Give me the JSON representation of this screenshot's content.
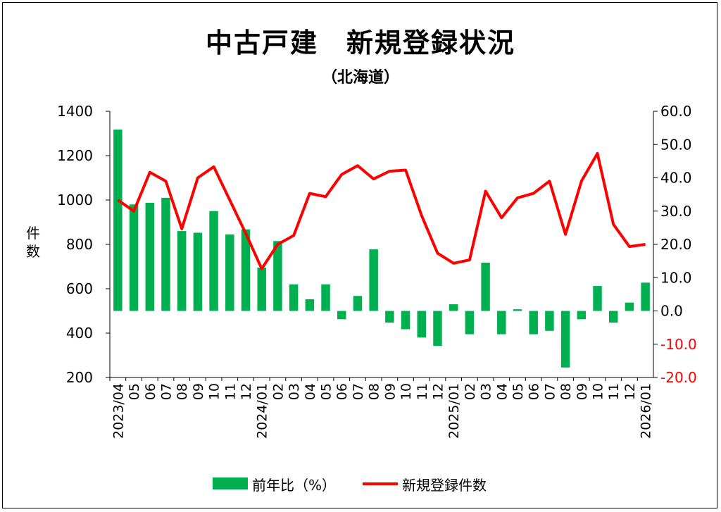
{
  "title": "中古戸建　新規登録状況",
  "subtitle": "（北海道）",
  "colors": {
    "bar": "#00b050",
    "line": "#ff0000",
    "right_negative_tick": "#ff0000",
    "axis": "#000000"
  },
  "chart_data": {
    "type": "bar+line",
    "categories": [
      "2023/04",
      "05",
      "06",
      "07",
      "08",
      "09",
      "10",
      "11",
      "12",
      "2024/01",
      "02",
      "03",
      "04",
      "05",
      "06",
      "07",
      "08",
      "09",
      "10",
      "11",
      "12",
      "2025/01",
      "02",
      "03",
      "04",
      "05",
      "06",
      "07",
      "08",
      "09",
      "10",
      "11",
      "12",
      "2026/01"
    ],
    "left_axis": {
      "label": "件数",
      "range": [
        200,
        1400
      ],
      "ticks": [
        "200",
        "400",
        "600",
        "800",
        "1000",
        "1200",
        "1400"
      ]
    },
    "right_axis": {
      "range": [
        -20,
        60
      ],
      "ticks": [
        "-20.0",
        "-10.0",
        "0.0",
        "10.0",
        "20.0",
        "30.0",
        "40.0",
        "50.0",
        "60.0"
      ]
    },
    "series": [
      {
        "name": "前年比（%）",
        "type": "bar",
        "axis": "right",
        "values": [
          54.5,
          32.0,
          32.5,
          34.0,
          24.0,
          23.5,
          30.0,
          23.0,
          24.5,
          13.0,
          21.0,
          8.0,
          3.5,
          8.0,
          -2.5,
          4.5,
          18.5,
          -3.5,
          -5.5,
          -8.0,
          -10.5,
          2.0,
          -7.0,
          14.5,
          -7.0,
          0.5,
          -7.0,
          -6.0,
          -17.0,
          -2.5,
          7.5,
          -3.5,
          2.5,
          8.5
        ]
      },
      {
        "name": "新規登録件数",
        "type": "line",
        "axis": "left",
        "values": [
          1000,
          950,
          1125,
          1085,
          870,
          1100,
          1150,
          1000,
          850,
          690,
          800,
          840,
          1030,
          1015,
          1115,
          1155,
          1095,
          1130,
          1135,
          930,
          760,
          715,
          730,
          1040,
          920,
          1010,
          1030,
          1085,
          845,
          1085,
          1210,
          890,
          790,
          800
        ]
      }
    ]
  }
}
